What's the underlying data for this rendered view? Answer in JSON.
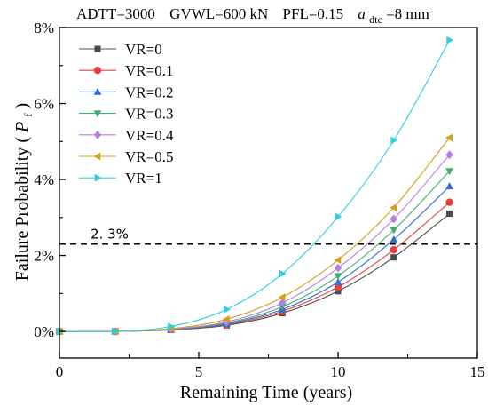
{
  "chart_data": {
    "type": "line",
    "title_parts": {
      "adtt": "ADTT=3000",
      "gvwl": "GVWL=600 kN",
      "pfl": "PFL=0.15",
      "adtc_symbol": "a",
      "adtc_sub": "dtc",
      "adtc_value": "=8 mm"
    },
    "xlabel": "Remaining Time (years)",
    "ylabel_text": "Failure Probability (",
    "ylabel_symbol": "P",
    "ylabel_sub": "f",
    "ylabel_close": ")",
    "xlim": [
      0,
      15
    ],
    "ylim": [
      -0.7,
      8
    ],
    "x_ticks": [
      0,
      5,
      10,
      15
    ],
    "x_tick_labels": [
      "0",
      "5",
      "10",
      "15"
    ],
    "y_ticks": [
      0,
      2,
      4,
      6,
      8
    ],
    "y_tick_labels": [
      "0%",
      "2%",
      "4%",
      "6%",
      "8%"
    ],
    "grid": false,
    "legend_position": "top-left",
    "reference_line": {
      "y": 2.3,
      "label": "2. 3%",
      "style": "dashed"
    },
    "x": [
      0,
      2,
      4,
      6,
      8,
      10,
      12,
      14
    ],
    "series": [
      {
        "name": "VR=0",
        "marker": "square",
        "color": "#4d4d4d",
        "values": [
          0,
          0,
          0.04,
          0.16,
          0.48,
          1.06,
          1.95,
          3.1
        ]
      },
      {
        "name": "VR=0.1",
        "marker": "circle",
        "color": "#e8413c",
        "values": [
          0,
          0,
          0.05,
          0.18,
          0.53,
          1.17,
          2.15,
          3.4
        ]
      },
      {
        "name": "VR=0.2",
        "marker": "triangle-up",
        "color": "#2f6fd6",
        "values": [
          0,
          0,
          0.05,
          0.2,
          0.58,
          1.3,
          2.42,
          3.82
        ]
      },
      {
        "name": "VR=0.3",
        "marker": "triangle-down",
        "color": "#3fae72",
        "values": [
          0,
          0,
          0.06,
          0.22,
          0.65,
          1.46,
          2.67,
          4.22
        ]
      },
      {
        "name": "VR=0.4",
        "marker": "diamond",
        "color": "#b57de6",
        "values": [
          0,
          0,
          0.06,
          0.25,
          0.75,
          1.67,
          2.96,
          4.65
        ]
      },
      {
        "name": "VR=0.5",
        "marker": "triangle-left",
        "color": "#d4a017",
        "values": [
          0,
          0,
          0.07,
          0.32,
          0.9,
          1.88,
          3.26,
          5.1
        ]
      },
      {
        "name": "VR=1",
        "marker": "triangle-right",
        "color": "#2ecfe0",
        "values": [
          0,
          0,
          0.13,
          0.58,
          1.52,
          3.02,
          5.03,
          7.67
        ]
      }
    ]
  }
}
